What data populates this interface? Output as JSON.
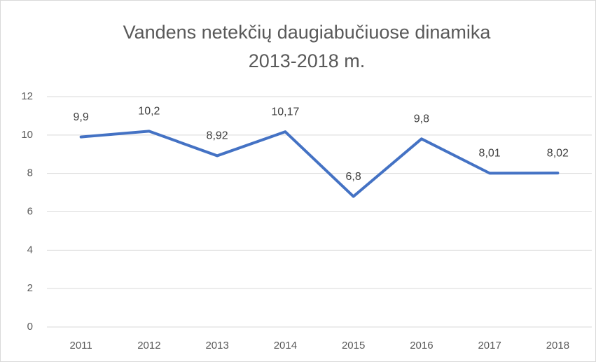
{
  "chart_data": {
    "type": "line",
    "title": [
      "Vandens netekčių daugiabučiuose dinamika",
      "2013-2018 m."
    ],
    "categories": [
      "2011",
      "2012",
      "2013",
      "2014",
      "2015",
      "2016",
      "2017",
      "2018"
    ],
    "series": [
      {
        "name": "Vandens netekčių daugiabučiuose dinamika",
        "color": "#4472c4",
        "values": [
          9.9,
          10.2,
          8.92,
          10.17,
          6.8,
          9.8,
          8.01,
          8.02
        ],
        "value_labels": [
          "9,9",
          "10,2",
          "8,92",
          "10,17",
          "6,8",
          "9,8",
          "8,01",
          "8,02"
        ]
      }
    ],
    "ylim": [
      0,
      12
    ],
    "yticks": [
      0,
      2,
      4,
      6,
      8,
      10,
      12
    ],
    "grid": true
  }
}
